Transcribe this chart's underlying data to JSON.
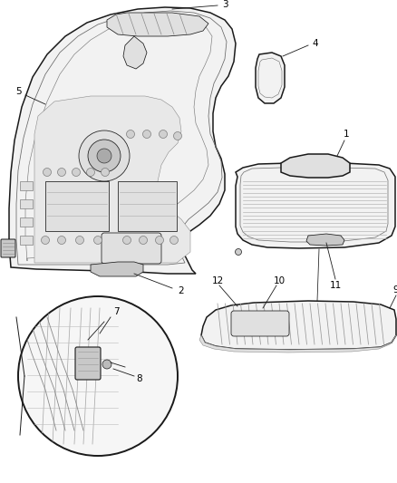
{
  "background_color": "#ffffff",
  "fig_width": 4.38,
  "fig_height": 5.33,
  "dpi": 100,
  "lc": "#1a1a1a",
  "lw_main": 1.1,
  "lw_thin": 0.55,
  "lw_detail": 0.4,
  "fc_light": "#f2f2f2",
  "fc_mid": "#e0e0e0",
  "fc_dark": "#c8c8c8",
  "fc_white": "#fafafa"
}
